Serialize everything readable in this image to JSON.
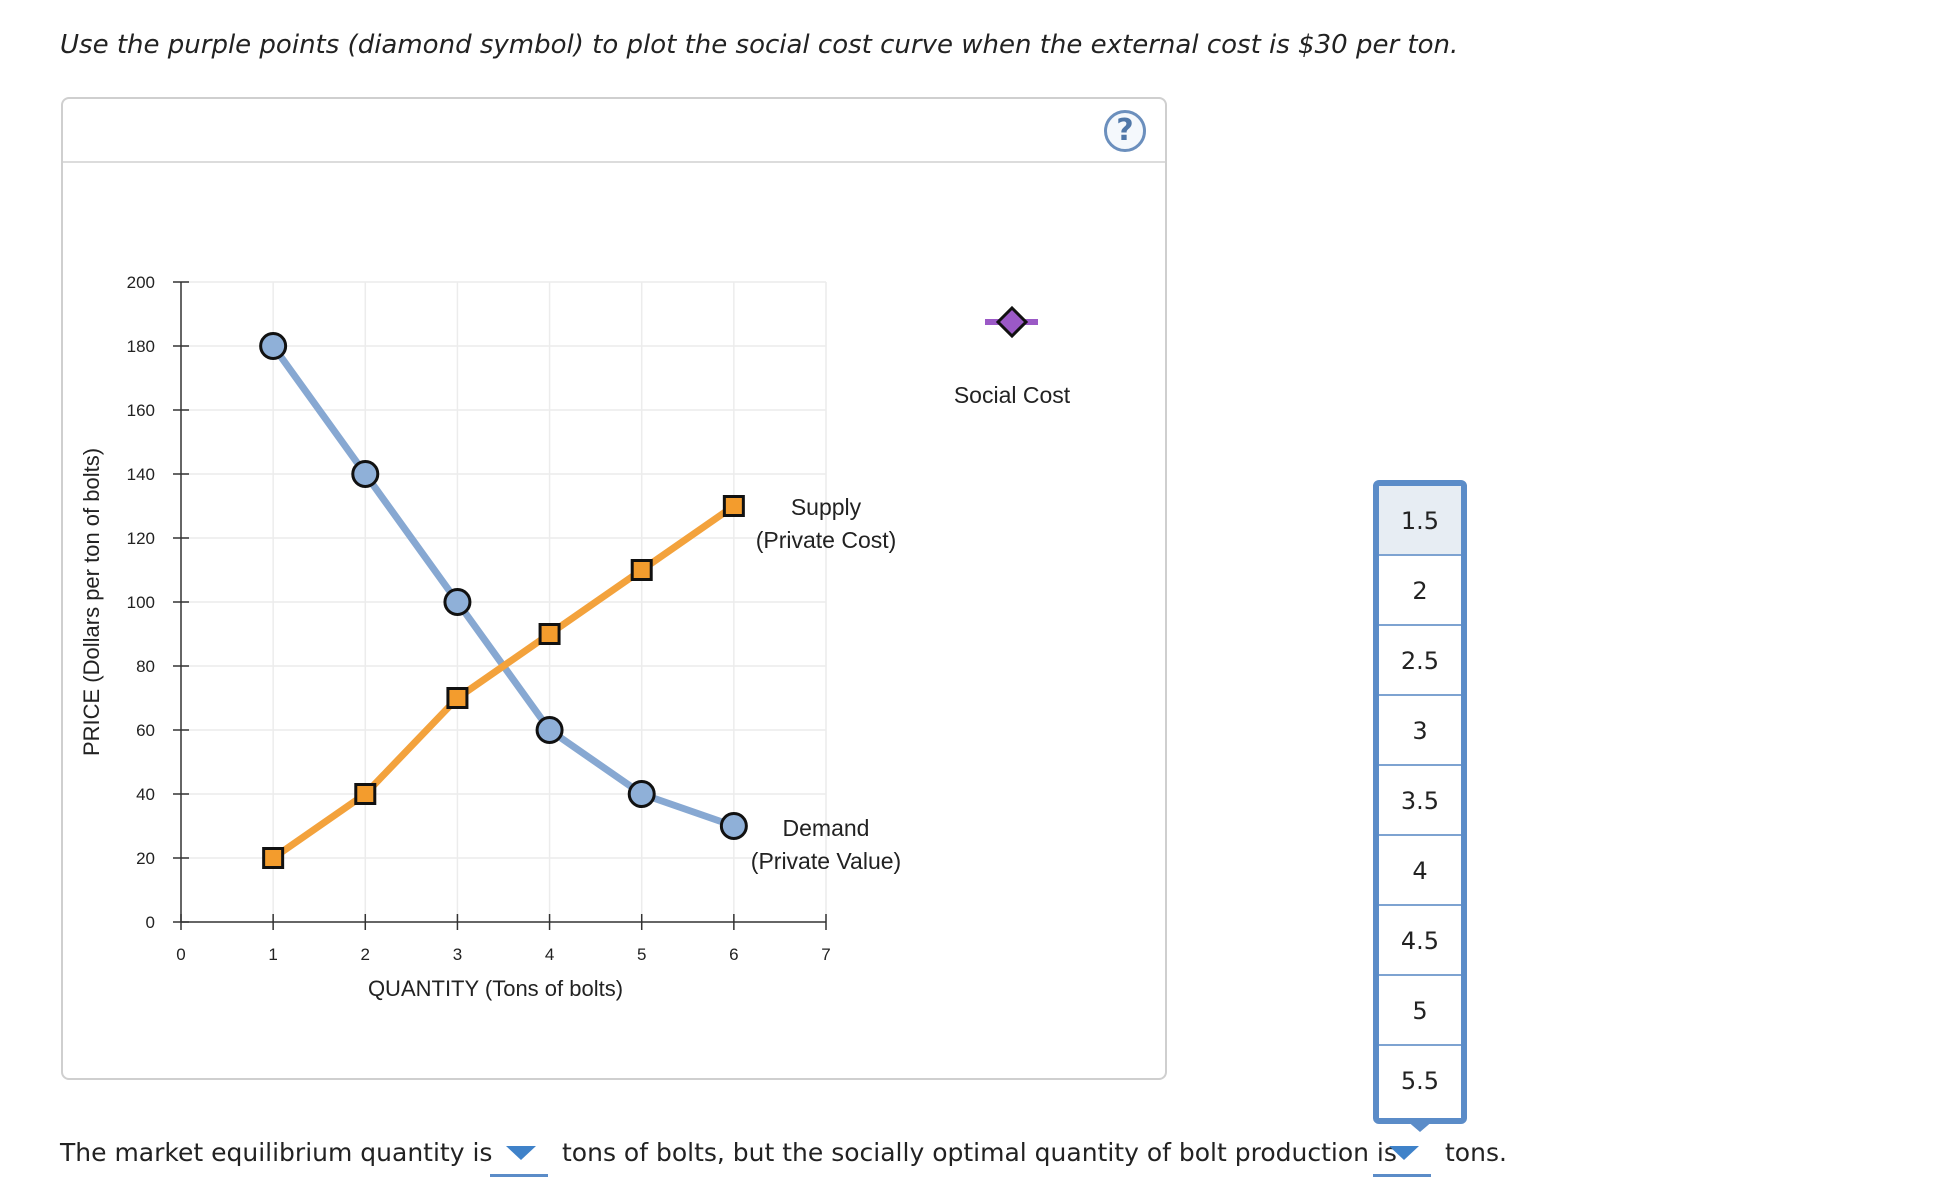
{
  "instruction": "Use the purple points (diamond symbol) to plot the social cost curve when the external cost is $30 per ton.",
  "help_label": "?",
  "chart_data": {
    "type": "line",
    "title": "",
    "xlabel": "QUANTITY (Tons of bolts)",
    "ylabel": "PRICE (Dollars per ton of bolts)",
    "xlim": [
      0,
      7
    ],
    "ylim": [
      0,
      200
    ],
    "x_ticks": [
      "0",
      "1",
      "2",
      "3",
      "4",
      "5",
      "6",
      "7"
    ],
    "y_ticks": [
      "0",
      "20",
      "40",
      "60",
      "80",
      "100",
      "120",
      "140",
      "160",
      "180",
      "200"
    ],
    "grid": true,
    "series": [
      {
        "name": "Demand",
        "label_lines": [
          "Demand",
          "(Private Value)"
        ],
        "marker": "circle",
        "line_color": "#87a8d2",
        "marker_fill": "#8fb0d8",
        "x": [
          1,
          2,
          3,
          4,
          5,
          6
        ],
        "y": [
          180,
          140,
          100,
          60,
          40,
          30
        ]
      },
      {
        "name": "Supply",
        "label_lines": [
          "Supply",
          "(Private Cost)"
        ],
        "marker": "square",
        "line_color": "#f3a23c",
        "marker_fill": "#f39c2d",
        "x": [
          1,
          2,
          3,
          4,
          5,
          6
        ],
        "y": [
          20,
          40,
          70,
          90,
          110,
          130
        ]
      }
    ],
    "palette_tool": {
      "name": "Social Cost",
      "marker": "diamond",
      "color": "#9b59c6"
    }
  },
  "dropdown_options": [
    "1.5",
    "2",
    "2.5",
    "3",
    "3.5",
    "4",
    "4.5",
    "5",
    "5.5"
  ],
  "dropdown_selected": "1.5",
  "question": {
    "part1": "The market equilibrium quantity is",
    "part2": "tons of bolts, but the socially optimal quantity of bolt production is",
    "part3": "tons."
  }
}
